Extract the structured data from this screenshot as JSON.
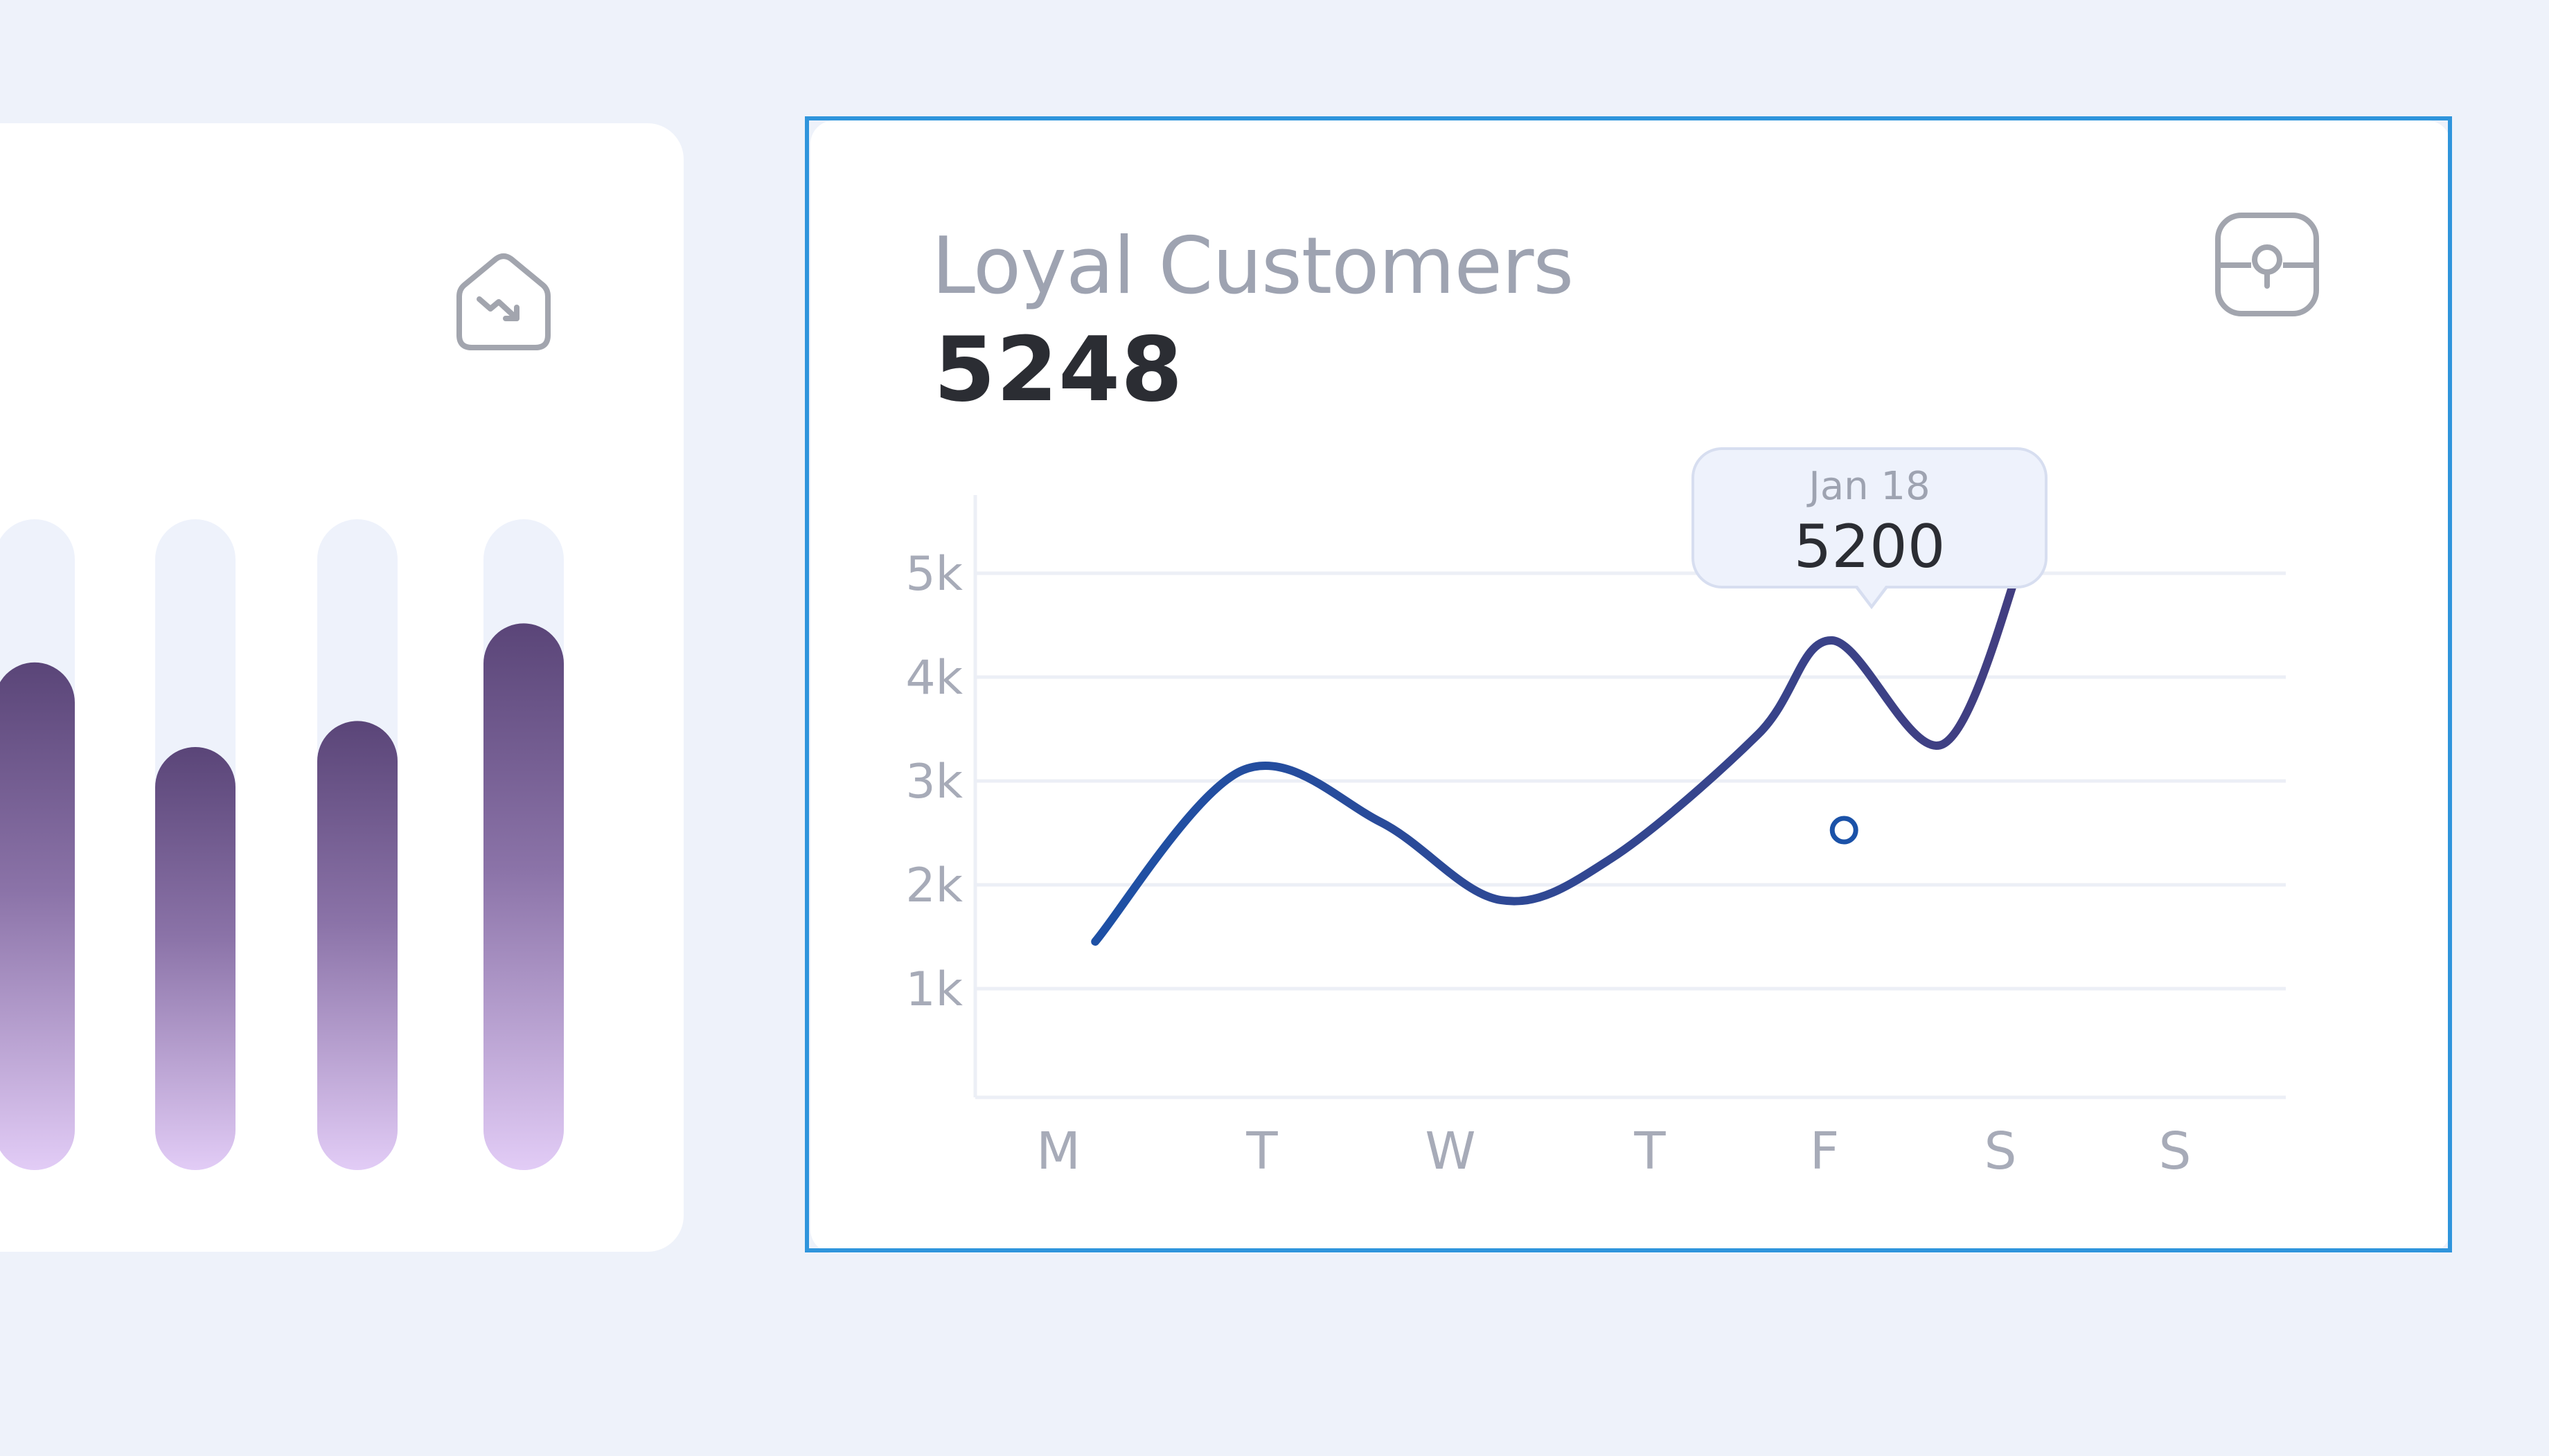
{
  "colors": {
    "background": "#eef2fa",
    "card": "#ffffff",
    "selection": "#2f95dc",
    "bar_top": "#5a4578",
    "bar_bottom": "#e2ccf6",
    "bar_track": "#eef2fb",
    "line_start": "#1b52a8",
    "line_end": "#4a3a78",
    "grid": "#eceff6",
    "muted_text": "#a7abb8",
    "strong_text": "#2b2d33"
  },
  "left_card": {
    "icon": "trending-down-icon",
    "bars": [
      0.78,
      0.65,
      0.69,
      0.84
    ]
  },
  "loyal_customers": {
    "title": "Loyal Customers",
    "value": "5248",
    "icon": "lock-icon",
    "tooltip": {
      "date": "Jan 18",
      "value": "5200"
    }
  },
  "chart_data": {
    "type": "line",
    "categories": [
      "M",
      "T",
      "W",
      "T",
      "F",
      "S",
      "S"
    ],
    "y_ticks": [
      "5k",
      "4k",
      "3k",
      "2k",
      "1k"
    ],
    "ylim": [
      0,
      5000
    ],
    "grid": true,
    "series": [
      {
        "x": [
          0.2,
          1.0,
          1.75,
          2.4,
          3.0,
          3.8,
          4.2,
          4.8,
          5.25
        ],
        "values": [
          1500,
          3150,
          2650,
          1900,
          2300,
          3500,
          4400,
          3400,
          5300
        ]
      }
    ],
    "highlight": {
      "category": "F",
      "value": 5200
    }
  }
}
